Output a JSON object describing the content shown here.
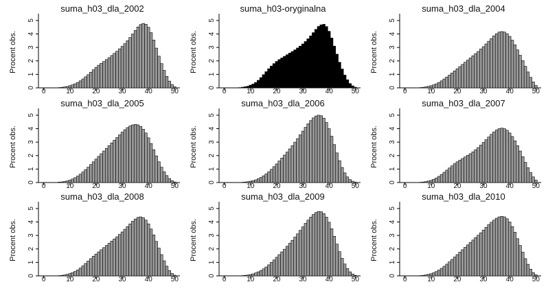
{
  "shared": {
    "ylabel": "Procent obs.",
    "x_ticks": [
      0,
      10,
      20,
      30,
      40,
      50
    ],
    "y_ticks": [
      0,
      1,
      2,
      3,
      4,
      5
    ]
  },
  "chart_data": [
    {
      "type": "bar",
      "title": "suma_h03_dla_2002",
      "ylabel": "Procent obs.",
      "xlim": [
        -2,
        52
      ],
      "ylim": [
        0,
        5.3
      ],
      "fill": "#9a9a9a",
      "categories": [
        0,
        1,
        2,
        3,
        4,
        5,
        6,
        7,
        8,
        9,
        10,
        11,
        12,
        13,
        14,
        15,
        16,
        17,
        18,
        19,
        20,
        21,
        22,
        23,
        24,
        25,
        26,
        27,
        28,
        29,
        30,
        31,
        32,
        33,
        34,
        35,
        36,
        37,
        38,
        39,
        40,
        41,
        42,
        43,
        44,
        45,
        46,
        47,
        48,
        49,
        50
      ],
      "values": [
        0,
        0,
        0,
        0,
        0,
        0.01,
        0.02,
        0.04,
        0.07,
        0.1,
        0.16,
        0.22,
        0.3,
        0.4,
        0.52,
        0.66,
        0.82,
        0.98,
        1.16,
        1.34,
        1.52,
        1.68,
        1.82,
        1.96,
        2.1,
        2.24,
        2.4,
        2.56,
        2.72,
        2.9,
        3.08,
        3.28,
        3.5,
        3.74,
        4.0,
        4.26,
        4.52,
        4.7,
        4.78,
        4.72,
        4.5,
        4.1,
        3.55,
        2.95,
        2.35,
        1.8,
        1.3,
        0.85,
        0.5,
        0.25,
        0.08
      ]
    },
    {
      "type": "bar",
      "title": "suma_h03-oryginalna",
      "ylabel": "Procent obs.",
      "xlim": [
        -2,
        52
      ],
      "ylim": [
        0,
        5.3
      ],
      "fill": "#000000",
      "categories": [
        0,
        1,
        2,
        3,
        4,
        5,
        6,
        7,
        8,
        9,
        10,
        11,
        12,
        13,
        14,
        15,
        16,
        17,
        18,
        19,
        20,
        21,
        22,
        23,
        24,
        25,
        26,
        27,
        28,
        29,
        30,
        31,
        32,
        33,
        34,
        35,
        36,
        37,
        38,
        39,
        40,
        41,
        42,
        43,
        44,
        45,
        46,
        47,
        48,
        49,
        50
      ],
      "values": [
        0,
        0,
        0,
        0,
        0,
        0.01,
        0.02,
        0.05,
        0.08,
        0.12,
        0.2,
        0.28,
        0.4,
        0.56,
        0.76,
        0.98,
        1.2,
        1.42,
        1.62,
        1.8,
        1.96,
        2.1,
        2.22,
        2.34,
        2.46,
        2.58,
        2.7,
        2.82,
        2.96,
        3.1,
        3.26,
        3.44,
        3.64,
        3.86,
        4.1,
        4.34,
        4.56,
        4.68,
        4.72,
        4.55,
        4.2,
        3.7,
        3.1,
        2.5,
        1.9,
        1.4,
        0.95,
        0.6,
        0.32,
        0.15,
        0.05
      ]
    },
    {
      "type": "bar",
      "title": "suma_h03_dla_2004",
      "ylabel": "Procent obs.",
      "xlim": [
        -2,
        52
      ],
      "ylim": [
        0,
        5.3
      ],
      "fill": "#9a9a9a",
      "categories": [
        0,
        1,
        2,
        3,
        4,
        5,
        6,
        7,
        8,
        9,
        10,
        11,
        12,
        13,
        14,
        15,
        16,
        17,
        18,
        19,
        20,
        21,
        22,
        23,
        24,
        25,
        26,
        27,
        28,
        29,
        30,
        31,
        32,
        33,
        34,
        35,
        36,
        37,
        38,
        39,
        40,
        41,
        42,
        43,
        44,
        45,
        46,
        47,
        48,
        49,
        50
      ],
      "values": [
        0,
        0,
        0,
        0,
        0,
        0.01,
        0.02,
        0.04,
        0.07,
        0.11,
        0.16,
        0.22,
        0.3,
        0.4,
        0.52,
        0.66,
        0.8,
        0.95,
        1.1,
        1.26,
        1.42,
        1.58,
        1.74,
        1.9,
        2.06,
        2.22,
        2.38,
        2.54,
        2.7,
        2.88,
        3.06,
        3.26,
        3.46,
        3.66,
        3.86,
        4.02,
        4.14,
        4.18,
        4.14,
        4.02,
        3.82,
        3.54,
        3.2,
        2.82,
        2.42,
        2.02,
        1.6,
        1.18,
        0.78,
        0.44,
        0.18
      ]
    },
    {
      "type": "bar",
      "title": "suma_h03_dla_2005",
      "ylabel": "Procent obs.",
      "xlim": [
        -2,
        52
      ],
      "ylim": [
        0,
        5.3
      ],
      "fill": "#9a9a9a",
      "categories": [
        0,
        1,
        2,
        3,
        4,
        5,
        6,
        7,
        8,
        9,
        10,
        11,
        12,
        13,
        14,
        15,
        16,
        17,
        18,
        19,
        20,
        21,
        22,
        23,
        24,
        25,
        26,
        27,
        28,
        29,
        30,
        31,
        32,
        33,
        34,
        35,
        36,
        37,
        38,
        39,
        40,
        41,
        42,
        43,
        44,
        45,
        46,
        47,
        48,
        49,
        50
      ],
      "values": [
        0,
        0,
        0,
        0,
        0,
        0.01,
        0.03,
        0.05,
        0.08,
        0.12,
        0.18,
        0.26,
        0.36,
        0.48,
        0.62,
        0.78,
        0.96,
        1.14,
        1.34,
        1.54,
        1.74,
        1.94,
        2.14,
        2.34,
        2.54,
        2.74,
        2.94,
        3.14,
        3.34,
        3.54,
        3.74,
        3.92,
        4.08,
        4.2,
        4.28,
        4.32,
        4.28,
        4.16,
        3.96,
        3.68,
        3.32,
        2.9,
        2.44,
        1.98,
        1.54,
        1.14,
        0.8,
        0.52,
        0.3,
        0.14,
        0.04
      ]
    },
    {
      "type": "bar",
      "title": "suma_h03_dla_2006",
      "ylabel": "Procent obs.",
      "xlim": [
        -2,
        52
      ],
      "ylim": [
        0,
        5.3
      ],
      "fill": "#9a9a9a",
      "categories": [
        0,
        1,
        2,
        3,
        4,
        5,
        6,
        7,
        8,
        9,
        10,
        11,
        12,
        13,
        14,
        15,
        16,
        17,
        18,
        19,
        20,
        21,
        22,
        23,
        24,
        25,
        26,
        27,
        28,
        29,
        30,
        31,
        32,
        33,
        34,
        35,
        36,
        37,
        38,
        39,
        40,
        41,
        42,
        43,
        44,
        45,
        46,
        47,
        48,
        49,
        50
      ],
      "values": [
        0,
        0,
        0,
        0,
        0,
        0,
        0.01,
        0.02,
        0.04,
        0.06,
        0.1,
        0.14,
        0.2,
        0.28,
        0.38,
        0.5,
        0.64,
        0.8,
        0.98,
        1.18,
        1.38,
        1.6,
        1.82,
        2.04,
        2.26,
        2.5,
        2.74,
        3.0,
        3.26,
        3.54,
        3.82,
        4.1,
        4.36,
        4.6,
        4.8,
        4.94,
        5.0,
        4.96,
        4.78,
        4.46,
        4.0,
        3.44,
        2.82,
        2.2,
        1.62,
        1.12,
        0.72,
        0.42,
        0.22,
        0.1,
        0.03
      ]
    },
    {
      "type": "bar",
      "title": "suma_h03_dla_2007",
      "ylabel": "Procent obs.",
      "xlim": [
        -2,
        52
      ],
      "ylim": [
        0,
        5.3
      ],
      "fill": "#9a9a9a",
      "categories": [
        0,
        1,
        2,
        3,
        4,
        5,
        6,
        7,
        8,
        9,
        10,
        11,
        12,
        13,
        14,
        15,
        16,
        17,
        18,
        19,
        20,
        21,
        22,
        23,
        24,
        25,
        26,
        27,
        28,
        29,
        30,
        31,
        32,
        33,
        34,
        35,
        36,
        37,
        38,
        39,
        40,
        41,
        42,
        43,
        44,
        45,
        46,
        47,
        48,
        49,
        50
      ],
      "values": [
        0,
        0,
        0,
        0,
        0,
        0.01,
        0.02,
        0.04,
        0.07,
        0.11,
        0.16,
        0.24,
        0.34,
        0.46,
        0.6,
        0.76,
        0.92,
        1.08,
        1.24,
        1.4,
        1.54,
        1.66,
        1.78,
        1.9,
        2.02,
        2.14,
        2.28,
        2.44,
        2.6,
        2.78,
        2.98,
        3.18,
        3.38,
        3.58,
        3.76,
        3.9,
        4.0,
        4.04,
        4.0,
        3.88,
        3.68,
        3.42,
        3.1,
        2.74,
        2.34,
        1.92,
        1.5,
        1.1,
        0.74,
        0.42,
        0.18
      ]
    },
    {
      "type": "bar",
      "title": "suma_h03_dla_2008",
      "ylabel": "Procent obs.",
      "xlim": [
        -2,
        52
      ],
      "ylim": [
        0,
        5.3
      ],
      "fill": "#9a9a9a",
      "categories": [
        0,
        1,
        2,
        3,
        4,
        5,
        6,
        7,
        8,
        9,
        10,
        11,
        12,
        13,
        14,
        15,
        16,
        17,
        18,
        19,
        20,
        21,
        22,
        23,
        24,
        25,
        26,
        27,
        28,
        29,
        30,
        31,
        32,
        33,
        34,
        35,
        36,
        37,
        38,
        39,
        40,
        41,
        42,
        43,
        44,
        45,
        46,
        47,
        48,
        49,
        50
      ],
      "values": [
        0,
        0,
        0,
        0,
        0,
        0.01,
        0.02,
        0.04,
        0.07,
        0.11,
        0.17,
        0.24,
        0.33,
        0.44,
        0.58,
        0.74,
        0.92,
        1.1,
        1.28,
        1.46,
        1.62,
        1.78,
        1.94,
        2.1,
        2.26,
        2.42,
        2.58,
        2.74,
        2.9,
        3.08,
        3.26,
        3.46,
        3.66,
        3.86,
        4.06,
        4.22,
        4.34,
        4.38,
        4.32,
        4.14,
        3.86,
        3.48,
        3.04,
        2.56,
        2.06,
        1.58,
        1.12,
        0.72,
        0.4,
        0.18,
        0.05
      ]
    },
    {
      "type": "bar",
      "title": "suma_h03_dla_2009",
      "ylabel": "Procent obs.",
      "xlim": [
        -2,
        52
      ],
      "ylim": [
        0,
        5.3
      ],
      "fill": "#9a9a9a",
      "categories": [
        0,
        1,
        2,
        3,
        4,
        5,
        6,
        7,
        8,
        9,
        10,
        11,
        12,
        13,
        14,
        15,
        16,
        17,
        18,
        19,
        20,
        21,
        22,
        23,
        24,
        25,
        26,
        27,
        28,
        29,
        30,
        31,
        32,
        33,
        34,
        35,
        36,
        37,
        38,
        39,
        40,
        41,
        42,
        43,
        44,
        45,
        46,
        47,
        48,
        49,
        50
      ],
      "values": [
        0,
        0,
        0,
        0,
        0,
        0,
        0.01,
        0.02,
        0.04,
        0.06,
        0.1,
        0.15,
        0.22,
        0.3,
        0.4,
        0.52,
        0.66,
        0.82,
        1.0,
        1.18,
        1.38,
        1.58,
        1.78,
        1.98,
        2.2,
        2.42,
        2.64,
        2.88,
        3.12,
        3.38,
        3.64,
        3.9,
        4.14,
        4.36,
        4.56,
        4.7,
        4.78,
        4.76,
        4.62,
        4.36,
        3.98,
        3.5,
        2.94,
        2.36,
        1.8,
        1.3,
        0.88,
        0.54,
        0.3,
        0.14,
        0.04
      ]
    },
    {
      "type": "bar",
      "title": "suma_h03_dla_2010",
      "ylabel": "Procent obs.",
      "xlim": [
        -2,
        52
      ],
      "ylim": [
        0,
        5.3
      ],
      "fill": "#9a9a9a",
      "categories": [
        0,
        1,
        2,
        3,
        4,
        5,
        6,
        7,
        8,
        9,
        10,
        11,
        12,
        13,
        14,
        15,
        16,
        17,
        18,
        19,
        20,
        21,
        22,
        23,
        24,
        25,
        26,
        27,
        28,
        29,
        30,
        31,
        32,
        33,
        34,
        35,
        36,
        37,
        38,
        39,
        40,
        41,
        42,
        43,
        44,
        45,
        46,
        47,
        48,
        49,
        50
      ],
      "values": [
        0,
        0,
        0,
        0,
        0,
        0.01,
        0.02,
        0.04,
        0.07,
        0.11,
        0.16,
        0.23,
        0.32,
        0.43,
        0.56,
        0.71,
        0.87,
        1.04,
        1.22,
        1.4,
        1.58,
        1.76,
        1.94,
        2.12,
        2.3,
        2.48,
        2.66,
        2.84,
        3.02,
        3.2,
        3.4,
        3.6,
        3.8,
        3.98,
        4.14,
        4.28,
        4.38,
        4.42,
        4.38,
        4.24,
        4.0,
        3.66,
        3.24,
        2.76,
        2.26,
        1.76,
        1.28,
        0.86,
        0.5,
        0.24,
        0.08
      ]
    }
  ]
}
